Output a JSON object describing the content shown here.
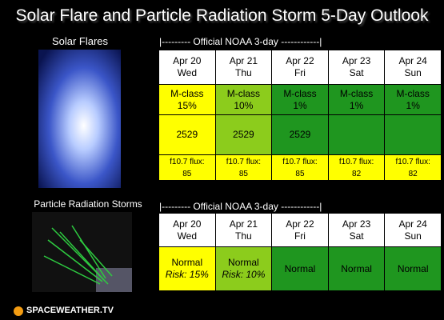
{
  "title": "Solar Flare and Particle Radiation Storm 5-Day Outlook",
  "logo": "SPACEWEATHER.TV",
  "solar_flares": {
    "label": "Solar Flares",
    "banner": "|--------- Official NOAA 3-day ------------|",
    "days": [
      [
        "Apr 20",
        "Wed"
      ],
      [
        "Apr 21",
        "Thu"
      ],
      [
        "Apr 22",
        "Fri"
      ],
      [
        "Apr 23",
        "Sat"
      ],
      [
        "Apr 24",
        "Sun"
      ]
    ],
    "rows": [
      [
        [
          "M-class",
          "15%"
        ],
        [
          "M-class",
          "10%"
        ],
        [
          "M-class",
          "1%"
        ],
        [
          "M-class",
          "1%"
        ],
        [
          "M-class",
          "1%"
        ]
      ],
      [
        [
          "2529"
        ],
        [
          "2529"
        ],
        [
          "2529"
        ],
        null,
        null
      ],
      [
        [
          "f10.7 flux:",
          "85"
        ],
        [
          "f10.7 flux:",
          "85"
        ],
        [
          "f10.7 flux:",
          "85"
        ],
        [
          "f10.7 flux:",
          "82"
        ],
        [
          "f10.7 flux:",
          "82"
        ]
      ]
    ]
  },
  "particle_storms": {
    "label": "Particle Radiation Storms",
    "banner": "|--------- Official NOAA 3-day ------------|",
    "days": [
      [
        "Apr 20",
        "Wed"
      ],
      [
        "Apr 21",
        "Thu"
      ],
      [
        "Apr 22",
        "Fri"
      ],
      [
        "Apr 23",
        "Sat"
      ],
      [
        "Apr 24",
        "Sun"
      ]
    ],
    "rows": [
      [
        [
          "Normal",
          "Risk: 15%"
        ],
        [
          "Normal",
          "Risk: 10%"
        ],
        [
          "Normal"
        ],
        [
          "Normal"
        ],
        [
          "Normal"
        ]
      ]
    ]
  }
}
